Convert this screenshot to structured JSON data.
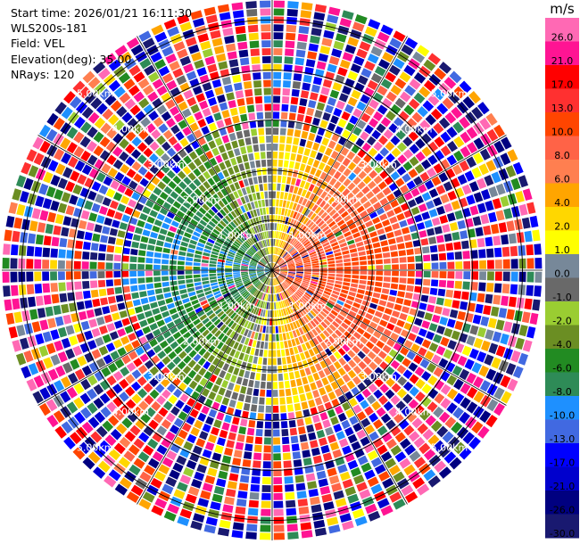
{
  "header": {
    "start_time": "Start time: 2026/01/21 16:11:30",
    "instrument": "WLS200s-181",
    "field": "Field: VEL",
    "elevation": "Elevation(deg): 35.00",
    "nrays": "NRays: 120"
  },
  "chart_data": {
    "type": "heatmap",
    "projection": "polar",
    "field": "VEL",
    "units": "m/s",
    "nrays": 120,
    "elevation_deg": 35.0,
    "range_rings_km": [
      1.0,
      2.0,
      3.0,
      4.0,
      5.0
    ],
    "ring_labels": [
      "1.00km",
      "2.00km",
      "3.00km",
      "4.00km",
      "5.00km"
    ],
    "max_range_km": 5.4,
    "radial_lines_deg": [
      0,
      30,
      60,
      90,
      120,
      150,
      180,
      210,
      240,
      270,
      300,
      330
    ],
    "colorbar": {
      "unit_label": "m/s",
      "tick_labels": [
        "26.0",
        "21.0",
        "17.0",
        "13.0",
        "10.0",
        "8.0",
        "6.0",
        "4.0",
        "2.0",
        "1.0",
        "0.0",
        "-1.0",
        "-2.0",
        "-4.0",
        "-6.0",
        "-8.0",
        "-10.0",
        "-13.0",
        "-17.0",
        "-21.0",
        "-26.0",
        "-30.0"
      ],
      "bands": [
        {
          "low": 26,
          "high": 30,
          "color": "#ff69b4"
        },
        {
          "low": 21,
          "high": 26,
          "color": "#ff1493"
        },
        {
          "low": 17,
          "high": 21,
          "color": "#ff0000"
        },
        {
          "low": 13,
          "high": 17,
          "color": "#ff3030"
        },
        {
          "low": 10,
          "high": 13,
          "color": "#ff4500"
        },
        {
          "low": 8,
          "high": 10,
          "color": "#ff6347"
        },
        {
          "low": 6,
          "high": 8,
          "color": "#ff7f50"
        },
        {
          "low": 4,
          "high": 6,
          "color": "#ffa500"
        },
        {
          "low": 2,
          "high": 4,
          "color": "#ffd700"
        },
        {
          "low": 1,
          "high": 2,
          "color": "#ffff00"
        },
        {
          "low": 0,
          "high": 1,
          "color": "#778899"
        },
        {
          "low": -1,
          "high": 0,
          "color": "#696969"
        },
        {
          "low": -2,
          "high": -1,
          "color": "#9acd32"
        },
        {
          "low": -4,
          "high": -2,
          "color": "#6b8e23"
        },
        {
          "low": -6,
          "high": -4,
          "color": "#228b22"
        },
        {
          "low": -8,
          "high": -6,
          "color": "#2e8b57"
        },
        {
          "low": -10,
          "high": -8,
          "color": "#1e90ff"
        },
        {
          "low": -13,
          "high": -10,
          "color": "#4169e1"
        },
        {
          "low": -17,
          "high": -13,
          "color": "#0000ff"
        },
        {
          "low": -21,
          "high": -17,
          "color": "#0000cd"
        },
        {
          "low": -26,
          "high": -21,
          "color": "#000080"
        },
        {
          "low": -30,
          "high": -26,
          "color": "#191970"
        }
      ]
    }
  }
}
